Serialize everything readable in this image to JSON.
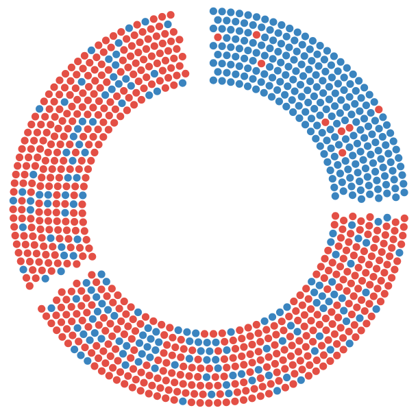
{
  "chart_data": {
    "type": "dot-donut",
    "title": "",
    "legend": "none",
    "colors": {
      "blue": "#3a84bf",
      "red": "#e34f45"
    },
    "segments": [
      {
        "order": 1,
        "angle_start_deg": 0,
        "angle_end_deg": 87,
        "dominant_color": "blue",
        "approx_dot_count": 330,
        "approx_share_red": 0.03
      },
      {
        "order": 2,
        "angle_start_deg": 92,
        "angle_end_deg": 240,
        "dominant_color": "red",
        "approx_dot_count": 700,
        "approx_share_red": 0.76
      },
      {
        "order": 3,
        "angle_start_deg": 245,
        "angle_end_deg": 350,
        "dominant_color": "red",
        "approx_dot_count": 600,
        "approx_share_red": 0.86
      }
    ]
  }
}
